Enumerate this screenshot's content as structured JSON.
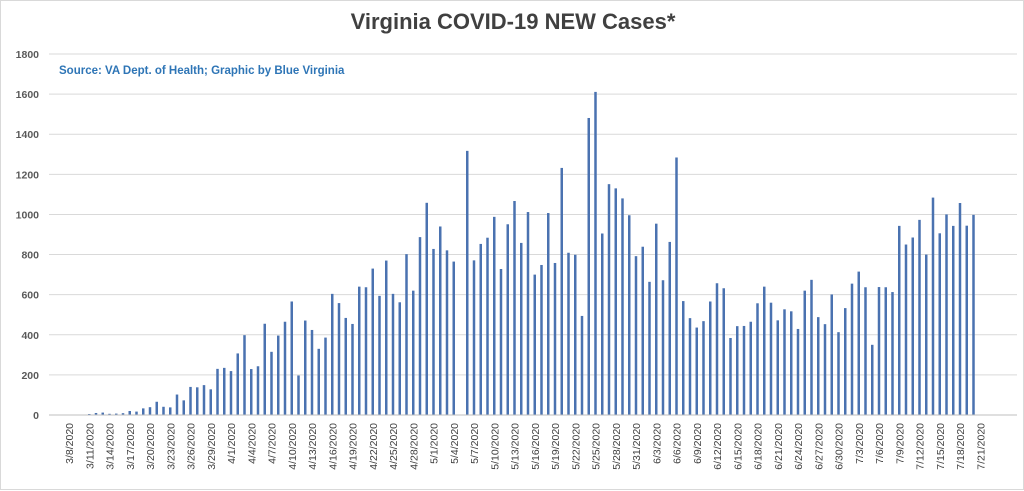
{
  "chart_data": {
    "type": "bar",
    "title": "Virginia COVID-19 NEW Cases*",
    "source": "Source: VA Dept. of Health; Graphic by Blue Virginia",
    "xlabel": "",
    "ylabel": "",
    "ylim": [
      0,
      1800
    ],
    "yticks": [
      0,
      200,
      400,
      600,
      800,
      1000,
      1200,
      1400,
      1600,
      1800
    ],
    "grid": true,
    "legend": "none",
    "bar_color": "#4a72b0",
    "x_start": "3/8/2020",
    "x_tick_labels": [
      "3/8/2020",
      "3/11/2020",
      "3/14/2020",
      "3/17/2020",
      "3/20/2020",
      "3/23/2020",
      "3/26/2020",
      "3/29/2020",
      "4/1/2020",
      "4/4/2020",
      "4/7/2020",
      "4/10/2020",
      "4/13/2020",
      "4/16/2020",
      "4/19/2020",
      "4/22/2020",
      "4/25/2020",
      "4/28/2020",
      "5/1/2020",
      "5/4/2020",
      "5/7/2020",
      "5/10/2020",
      "5/13/2020",
      "5/16/2020",
      "5/19/2020",
      "5/22/2020",
      "5/25/2020",
      "5/28/2020",
      "5/31/2020",
      "6/3/2020",
      "6/6/2020",
      "6/9/2020",
      "6/12/2020",
      "6/15/2020",
      "6/18/2020",
      "6/21/2020",
      "6/24/2020",
      "6/27/2020",
      "6/30/2020",
      "7/3/2020",
      "7/6/2020",
      "7/9/2020",
      "7/12/2020",
      "7/15/2020",
      "7/18/2020",
      "7/21/2020"
    ],
    "values": [
      2,
      2,
      2,
      5,
      10,
      12,
      6,
      7,
      9,
      20,
      17,
      33,
      39,
      66,
      41,
      38,
      102,
      73,
      140,
      138,
      149,
      128,
      230,
      235,
      219,
      307,
      398,
      229,
      243,
      455,
      315,
      396,
      465,
      566,
      197,
      471,
      424,
      330,
      386,
      604,
      558,
      484,
      454,
      640,
      637,
      730,
      594,
      770,
      604,
      562,
      802,
      620,
      887,
      1058,
      828,
      940,
      821,
      765,
      0,
      1317,
      771,
      853,
      884,
      988,
      728,
      951,
      1067,
      858,
      1012,
      700,
      748,
      1007,
      758,
      1232,
      809,
      799,
      494,
      1481,
      1611,
      905,
      1151,
      1130,
      1080,
      996,
      792,
      839,
      664,
      954,
      672,
      863,
      1284,
      568,
      483,
      436,
      468,
      566,
      657,
      632,
      384,
      443,
      444,
      465,
      557,
      640,
      560,
      472,
      527,
      517,
      429,
      620,
      674,
      488,
      453,
      601,
      413,
      533,
      655,
      715,
      637,
      350,
      638,
      637,
      613,
      943,
      850,
      885,
      973,
      800,
      1084,
      906,
      1000,
      943,
      1057,
      944,
      998
    ]
  }
}
